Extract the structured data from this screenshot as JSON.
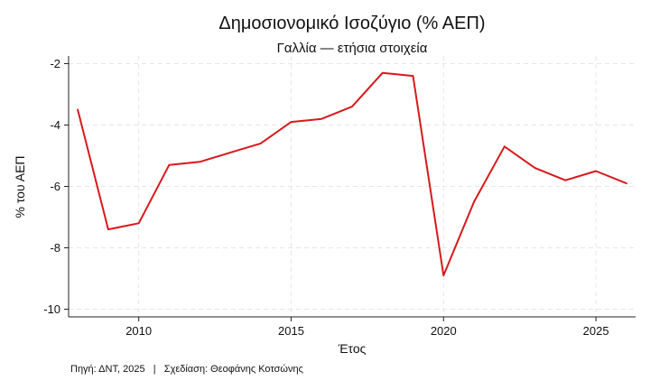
{
  "chart_data": {
    "type": "line",
    "title": "Δημοσιονομικό Ισοζύγιο (% ΑΕΠ)",
    "subtitle": "Γαλλία — ετήσια στοιχεία",
    "xlabel": "Έτος",
    "ylabel": "% του ΑΕΠ",
    "note": "Πηγή: ΔΝΤ, 2025   |   Σχεδίαση: Θεοφάνης Κοτσώνης",
    "xlim": [
      2007.7,
      2026.3
    ],
    "ylim": [
      -10.25,
      -1.75
    ],
    "x_ticks": [
      2010,
      2015,
      2020,
      2025
    ],
    "y_ticks": [
      -10,
      -8,
      -6,
      -4,
      -2
    ],
    "grid": true,
    "series_color": "#d7191c",
    "x": [
      2008,
      2009,
      2010,
      2011,
      2012,
      2013,
      2014,
      2015,
      2016,
      2017,
      2018,
      2019,
      2020,
      2021,
      2022,
      2023,
      2024,
      2025,
      2026
    ],
    "y": [
      -3.5,
      -7.4,
      -7.2,
      -5.3,
      -5.2,
      -4.9,
      -4.6,
      -3.9,
      -3.8,
      -3.4,
      -2.3,
      -2.4,
      -8.9,
      -6.5,
      -4.7,
      -5.4,
      -5.8,
      -5.5,
      -5.9
    ]
  }
}
